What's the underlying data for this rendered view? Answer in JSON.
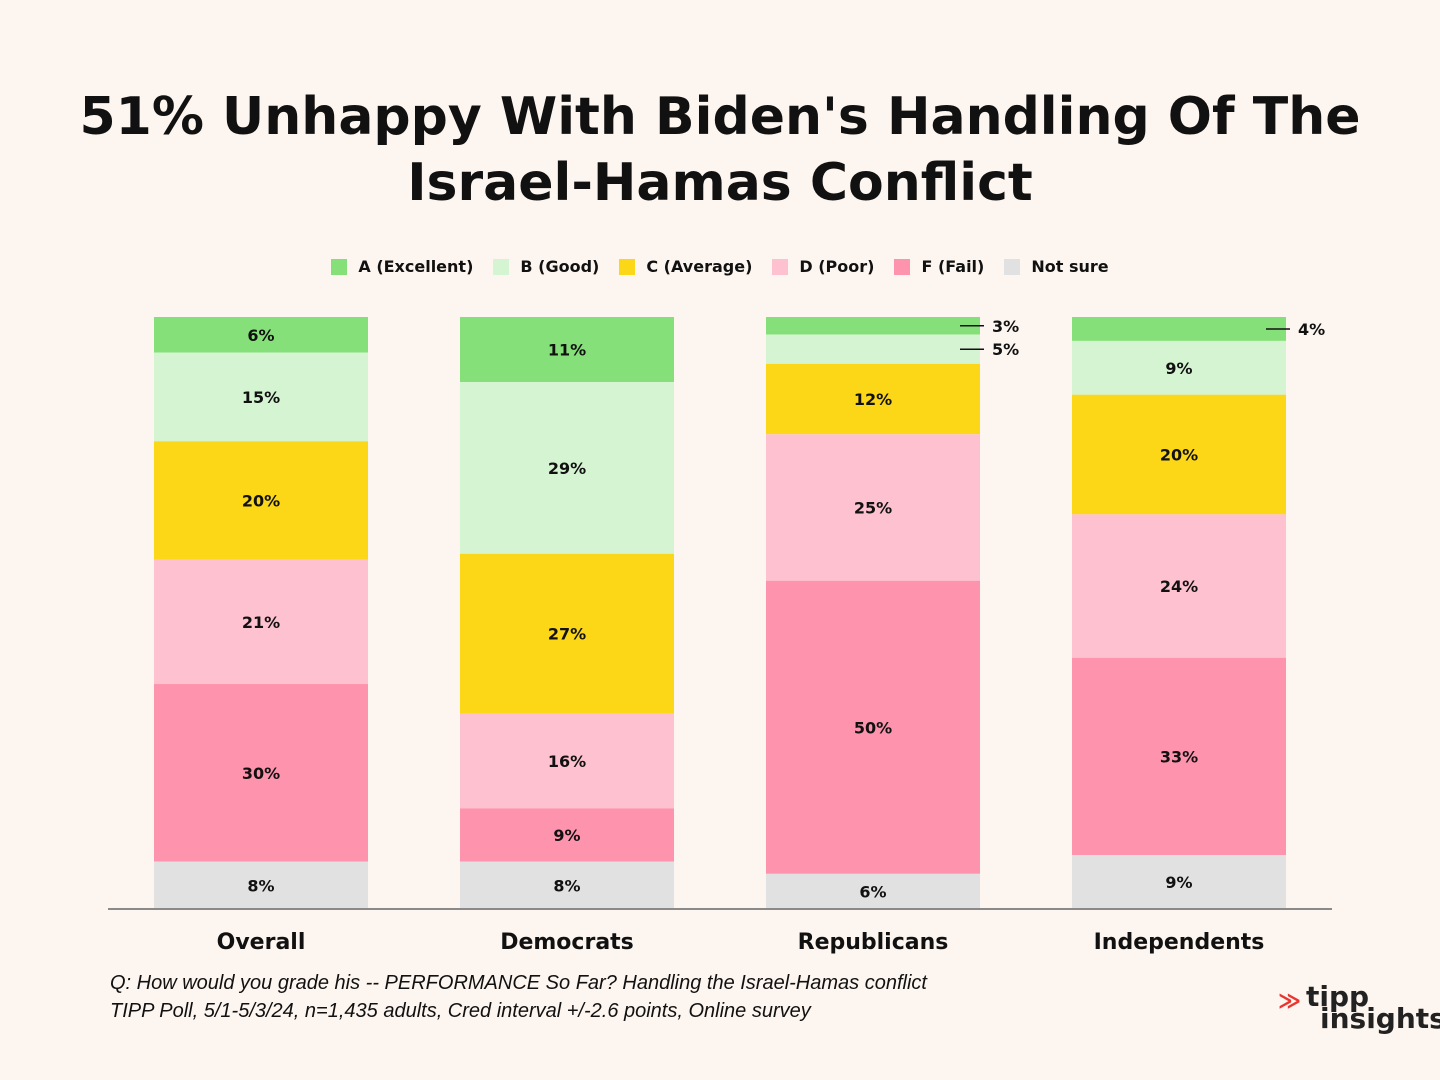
{
  "title_lines": [
    "51% Unhappy With Biden's Handling Of The",
    "Israel-Hamas Conflict"
  ],
  "legend": [
    {
      "label": "A (Excellent)",
      "color": "#86e07a"
    },
    {
      "label": "B (Good)",
      "color": "#d5f4d2"
    },
    {
      "label": "C (Average)",
      "color": "#fcd718"
    },
    {
      "label": "D (Poor)",
      "color": "#fdc1cf"
    },
    {
      "label": "F (Fail)",
      "color": "#fe93ad"
    },
    {
      "label": "Not sure",
      "color": "#e1e1e1"
    }
  ],
  "chart_data": {
    "type": "bar",
    "stacked": true,
    "title": "51% Unhappy With Biden's Handling Of The Israel-Hamas Conflict",
    "categories": [
      "Overall",
      "Democrats",
      "Republicans",
      "Independents"
    ],
    "series": [
      {
        "name": "A (Excellent)",
        "color": "#86e07a",
        "values": [
          6,
          11,
          3,
          4
        ],
        "labels": [
          "6%",
          "11%",
          "3%",
          "4%"
        ]
      },
      {
        "name": "B (Good)",
        "color": "#d5f4d2",
        "values": [
          15,
          29,
          5,
          9
        ],
        "labels": [
          "15%",
          "29%",
          "5%",
          "9%"
        ]
      },
      {
        "name": "C (Average)",
        "color": "#fcd718",
        "values": [
          20,
          27,
          12,
          20
        ],
        "labels": [
          "20%",
          "27%",
          "12%",
          "20%"
        ]
      },
      {
        "name": "D (Poor)",
        "color": "#fdc1cf",
        "values": [
          21,
          16,
          25,
          24
        ],
        "labels": [
          "21%",
          "16%",
          "25%",
          "24%"
        ]
      },
      {
        "name": "F (Fail)",
        "color": "#fe93ad",
        "values": [
          30,
          9,
          50,
          33
        ],
        "labels": [
          "30%",
          "9%",
          "50%",
          "33%"
        ]
      },
      {
        "name": "Not sure",
        "color": "#e1e1e1",
        "values": [
          8,
          8,
          6,
          9
        ],
        "labels": [
          "8%",
          "8%",
          "6%",
          "9%"
        ]
      }
    ],
    "outside_labels": [
      {
        "category": "Republicans",
        "series": "A (Excellent)"
      },
      {
        "category": "Republicans",
        "series": "B (Good)"
      },
      {
        "category": "Independents",
        "series": "A (Excellent)"
      }
    ],
    "legend_position": "top",
    "grid": false
  },
  "footnote": {
    "line1": "Q:  How would you grade his -- PERFORMANCE So Far? Handling the Israel-Hamas conflict",
    "line2": "TIPP Poll, 5/1-5/3/24, n=1,435 adults, Cred interval +/-2.6 points, Online survey"
  },
  "logo": {
    "line1": "tipp",
    "line2": "insights"
  }
}
